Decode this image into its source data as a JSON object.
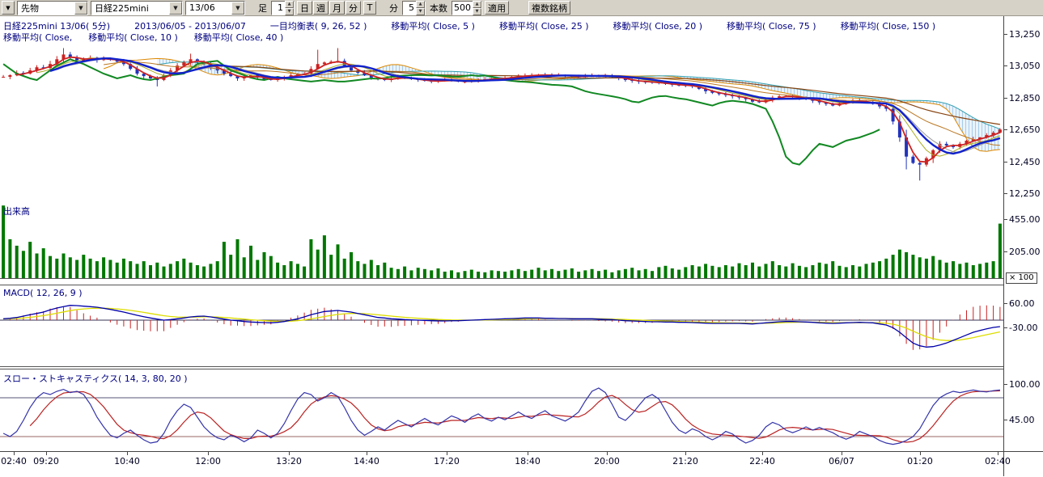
{
  "toolbar": {
    "market_combo": "先物",
    "symbol_combo": "日経225mini",
    "contract_combo": "13/06",
    "bar_label": "足",
    "bar_value": "1",
    "period_buttons": [
      "日",
      "週",
      "月",
      "分"
    ],
    "t_button": "T",
    "minute_label": "分",
    "minute_value": "5",
    "count_label": "本数",
    "count_value": "500",
    "apply_button": "適用",
    "multi_symbol_button": "複数銘柄"
  },
  "legend": {
    "line1": [
      "日経225mini 13/06( 5分)",
      "2013/06/05 - 2013/06/07",
      "一目均衡表( 9, 26, 52 )",
      "移動平均( Close, 5 )",
      "移動平均( Close, 25 )",
      "移動平均( Close, 20 )",
      "移動平均( Close, 75 )",
      "移動平均( Close, 150 )"
    ],
    "line2": [
      "移動平均( Close,",
      "移動平均( Close, 10 )",
      "移動平均( Close, 40 )"
    ]
  },
  "panel_labels": {
    "volume": "出来高",
    "volume_multiplier": "× 100",
    "macd": "MACD( 12, 26, 9 )",
    "stoch": "スロー・ストキャスティクス( 14, 3, 80, 20 )"
  },
  "chart_data": {
    "type": "candlestick",
    "symbol": "日経225mini 13/06",
    "interval": "5分",
    "date_range": "2013/06/05 - 2013/06/07",
    "bars_setting": 500,
    "indicators": [
      "一目均衡表(9,26,52)",
      "移動平均 Close 5/10/20/25/40/75/150",
      "MACD(12,26,9)",
      "スロー・ストキャスティクス(14,3,80,20)"
    ],
    "colors": {
      "up": "#cc2222",
      "down": "#2233bb",
      "volume": "#007700",
      "tenkan": "#cc2222",
      "kijun": "#1122cc",
      "chikou": "#118822",
      "span_a": "#dd8800",
      "span_b": "#33a0b0",
      "ma10": "#00aaaa",
      "ma25": "#aaaa22",
      "ma40": "#999999",
      "ma75": "#bb7722",
      "ma150": "#884411",
      "macd_line": "#0000aa",
      "macd_signal": "#dddd00",
      "macd_hist": "#cc2222",
      "stoch_k": "#3333aa",
      "stoch_d": "#bb2222",
      "stoch_ref_hi": "#555577",
      "stoch_ref_lo": "#996666",
      "zero_line": "#333355"
    },
    "time_labels": [
      {
        "label": "02:40",
        "x": 0.014
      },
      {
        "label": "09:20",
        "x": 0.046
      },
      {
        "label": "10:40",
        "x": 0.127
      },
      {
        "label": "12:00",
        "x": 0.207
      },
      {
        "label": "13:20",
        "x": 0.288
      },
      {
        "label": "14:40",
        "x": 0.365
      },
      {
        "label": "17:20",
        "x": 0.445
      },
      {
        "label": "18:40",
        "x": 0.526
      },
      {
        "label": "20:00",
        "x": 0.605
      },
      {
        "label": "21:20",
        "x": 0.683
      },
      {
        "label": "22:40",
        "x": 0.76
      },
      {
        "label": "06/07",
        "x": 0.839
      },
      {
        "label": "01:20",
        "x": 0.917
      },
      {
        "label": "02:40",
        "x": 0.994
      }
    ],
    "panels": {
      "price": {
        "ylim": [
          12195,
          13360
        ],
        "ticks": [
          {
            "v": 13250,
            "label": "13,250"
          },
          {
            "v": 13050,
            "label": "13,050"
          },
          {
            "v": 12850,
            "label": "12,850"
          },
          {
            "v": 12650,
            "label": "12,650"
          },
          {
            "v": 12450,
            "label": "12,450"
          },
          {
            "v": 12250,
            "label": "12,250"
          }
        ],
        "close": [
          12980,
          12990,
          13005,
          13000,
          13020,
          13040,
          13035,
          13060,
          13090,
          13120,
          13100,
          13080,
          13095,
          13100,
          13085,
          13095,
          13090,
          13075,
          13060,
          13030,
          13000,
          12985,
          12970,
          12960,
          12990,
          13020,
          13050,
          13070,
          13090,
          13075,
          13060,
          13040,
          13020,
          13000,
          12985,
          12970,
          12980,
          12990,
          12975,
          12965,
          12960,
          12970,
          12980,
          12990,
          12995,
          13000,
          13030,
          13060,
          13070,
          13075,
          13080,
          13050,
          13020,
          13005,
          12990,
          12975,
          12965,
          12960,
          12970,
          12980,
          12970,
          12965,
          12960,
          12955,
          12950,
          12955,
          12960,
          12955,
          12950,
          12950,
          12955,
          12960,
          12965,
          12970,
          12968,
          12972,
          12980,
          12985,
          12988,
          12990,
          12992,
          12990,
          12988,
          12990,
          12985,
          12982,
          12980,
          12985,
          12990,
          12985,
          12988,
          12980,
          12970,
          12960,
          12955,
          12950,
          12948,
          12945,
          12940,
          12935,
          12930,
          12928,
          12925,
          12920,
          12905,
          12890,
          12880,
          12872,
          12865,
          12858,
          12850,
          12840,
          12825,
          12820,
          12835,
          12850,
          12858,
          12860,
          12852,
          12845,
          12840,
          12830,
          12820,
          12810,
          12800,
          12815,
          12825,
          12830,
          12825,
          12820,
          12810,
          12795,
          12780,
          12700,
          12600,
          12480,
          12440,
          12430,
          12470,
          12520,
          12560,
          12550,
          12540,
          12560,
          12580,
          12590,
          12600,
          12615,
          12630,
          12650
        ],
        "spike_highs": [
          {
            "i": 9,
            "high": 13160
          },
          {
            "i": 28,
            "high": 13125
          },
          {
            "i": 47,
            "high": 13150
          },
          {
            "i": 50,
            "high": 13160
          }
        ],
        "spike_lows": [
          {
            "i": 23,
            "low": 12920
          },
          {
            "i": 135,
            "low": 12400
          },
          {
            "i": 137,
            "low": 12330
          },
          {
            "i": 139,
            "low": 12440
          }
        ]
      },
      "volume": {
        "ylim": [
          0,
          586
        ],
        "ticks": [
          {
            "v": 455,
            "label": "455.00"
          },
          {
            "v": 205,
            "label": "205.00"
          }
        ],
        "unit_multiplier": 100,
        "values": [
          560,
          300,
          250,
          210,
          280,
          190,
          230,
          170,
          150,
          190,
          160,
          140,
          180,
          150,
          130,
          160,
          140,
          120,
          150,
          130,
          110,
          130,
          100,
          120,
          90,
          110,
          130,
          150,
          120,
          100,
          90,
          110,
          130,
          280,
          180,
          300,
          160,
          250,
          140,
          200,
          170,
          120,
          100,
          130,
          110,
          90,
          300,
          220,
          330,
          180,
          260,
          150,
          200,
          130,
          110,
          140,
          100,
          120,
          80,
          70,
          90,
          60,
          80,
          70,
          60,
          75,
          50,
          60,
          45,
          55,
          65,
          50,
          45,
          60,
          55,
          50,
          60,
          70,
          55,
          65,
          80,
          60,
          70,
          55,
          65,
          75,
          50,
          60,
          70,
          55,
          65,
          45,
          60,
          70,
          80,
          60,
          70,
          55,
          85,
          95,
          75,
          65,
          85,
          100,
          90,
          110,
          95,
          85,
          100,
          90,
          115,
          100,
          120,
          90,
          110,
          130,
          100,
          90,
          115,
          95,
          85,
          100,
          120,
          110,
          130,
          95,
          85,
          100,
          90,
          110,
          120,
          130,
          150,
          180,
          220,
          200,
          180,
          160,
          150,
          170,
          140,
          120,
          130,
          110,
          120,
          100,
          110,
          120,
          130,
          420
        ]
      },
      "macd": {
        "ylim": [
          -171,
          129
        ],
        "ticks": [
          {
            "v": 60,
            "label": "60.00"
          },
          {
            "v": -30,
            "label": "-30.00"
          }
        ],
        "values": [
          5,
          7,
          10,
          15,
          20,
          25,
          30,
          38,
          45,
          50,
          55,
          54,
          52,
          50,
          48,
          44,
          40,
          35,
          30,
          24,
          18,
          13,
          8,
          4,
          0,
          2,
          5,
          8,
          12,
          14,
          15,
          12,
          8,
          4,
          0,
          -2,
          -5,
          -7,
          -8,
          -9,
          -10,
          -8,
          -5,
          0,
          5,
          12,
          20,
          26,
          32,
          34,
          36,
          33,
          30,
          25,
          20,
          15,
          10,
          8,
          5,
          4,
          2,
          1,
          0,
          -1,
          -2,
          -3,
          -3,
          -2,
          -2,
          -1,
          0,
          1,
          2,
          3,
          4,
          5,
          6,
          7,
          8,
          8,
          8,
          7,
          7,
          6,
          6,
          5,
          5,
          5,
          5,
          4,
          3,
          2,
          0,
          -2,
          -3,
          -4,
          -5,
          -6,
          -6,
          -7,
          -7,
          -8,
          -8,
          -9,
          -10,
          -11,
          -12,
          -12,
          -12,
          -12,
          -12,
          -13,
          -14,
          -12,
          -10,
          -8,
          -6,
          -5,
          -5,
          -6,
          -7,
          -8,
          -10,
          -11,
          -12,
          -11,
          -10,
          -9,
          -8,
          -9,
          -10,
          -14,
          -18,
          -28,
          -45,
          -65,
          -85,
          -95,
          -100,
          -98,
          -92,
          -85,
          -75,
          -65,
          -55,
          -45,
          -38,
          -32,
          -27,
          -24
        ]
      },
      "stoch": {
        "ylim": [
          -3.75,
          123.75
        ],
        "ticks": [
          {
            "v": 100,
            "label": "100.00"
          },
          {
            "v": 45,
            "label": "45.00"
          }
        ],
        "ref_lines": [
          80,
          20
        ],
        "values": [
          25,
          20,
          28,
          45,
          65,
          80,
          88,
          85,
          90,
          93,
          88,
          90,
          85,
          70,
          50,
          35,
          22,
          18,
          25,
          30,
          22,
          15,
          10,
          12,
          25,
          45,
          60,
          70,
          65,
          50,
          35,
          25,
          18,
          15,
          22,
          18,
          12,
          18,
          30,
          25,
          18,
          25,
          40,
          60,
          78,
          88,
          85,
          75,
          80,
          88,
          82,
          65,
          45,
          30,
          22,
          28,
          35,
          30,
          38,
          45,
          40,
          35,
          42,
          48,
          42,
          38,
          45,
          52,
          48,
          42,
          50,
          55,
          48,
          44,
          50,
          46,
          52,
          58,
          52,
          48,
          55,
          60,
          52,
          48,
          44,
          50,
          58,
          75,
          90,
          95,
          88,
          70,
          50,
          45,
          55,
          68,
          80,
          85,
          78,
          60,
          42,
          30,
          25,
          32,
          28,
          20,
          15,
          20,
          28,
          24,
          16,
          10,
          14,
          22,
          35,
          42,
          38,
          30,
          26,
          30,
          35,
          30,
          34,
          30,
          26,
          20,
          16,
          20,
          28,
          24,
          20,
          14,
          10,
          8,
          10,
          14,
          20,
          32,
          50,
          68,
          80,
          86,
          90,
          88,
          90,
          92,
          90,
          89,
          91,
          92
        ]
      }
    }
  }
}
